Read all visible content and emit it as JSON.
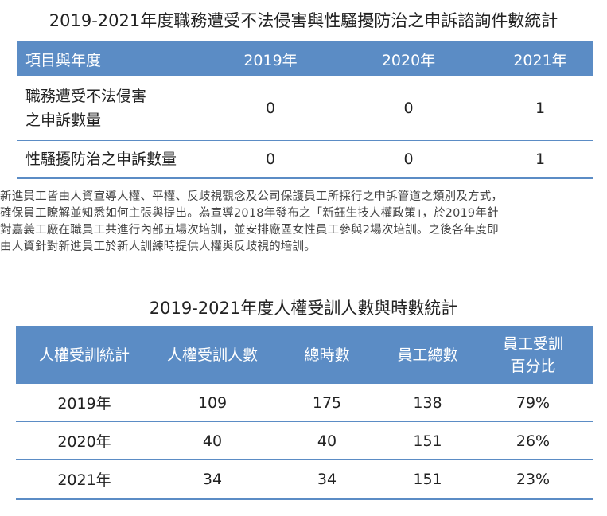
{
  "table1": {
    "title": "2019-2021年度職務遭受不法侵害與性騷擾防治之申訴諮詢件數統計",
    "headers": [
      "項目與年度",
      "2019年",
      "2020年",
      "2021年"
    ],
    "rows": [
      {
        "label_line1": "職務遭受不法侵害",
        "label_line2": "之申訴數量",
        "values": [
          "0",
          "0",
          "1"
        ]
      },
      {
        "label": "性騷擾防治之申訴數量",
        "values": [
          "0",
          "0",
          "1"
        ]
      }
    ]
  },
  "paragraph": [
    "新進員工皆由人資宣導人權、平權、反歧視觀念及公司保護員工所採行之申訴管道之類別及方式，",
    "確保員工瞭解並知悉如何主張與提出。為宣導2018年發布之「新鈺生技人權政策」，於2019年針",
    "對嘉義工廠在職員工共進行內部五場次培訓，並安排廠區女性員工參與2場次培訓。之後各年度即",
    "由人資針對新進員工於新人訓練時提供人權與反歧視的培訓。"
  ],
  "table2": {
    "title": "2019-2021年度人權受訓人數與時數統計",
    "headers": [
      "人權受訓統計",
      "人權受訓人數",
      "總時數",
      "員工總數"
    ],
    "header_last_line1": "員工受訓",
    "header_last_line2": "百分比",
    "rows": [
      [
        "2019年",
        "109",
        "175",
        "138",
        "79%"
      ],
      [
        "2020年",
        "40",
        "40",
        "151",
        "26%"
      ],
      [
        "2021年",
        "34",
        "34",
        "151",
        "23%"
      ]
    ]
  },
  "colors": {
    "header_bg": "#5b8cc5",
    "header_text": "#ffffff",
    "rule": "#5b8cc5"
  }
}
